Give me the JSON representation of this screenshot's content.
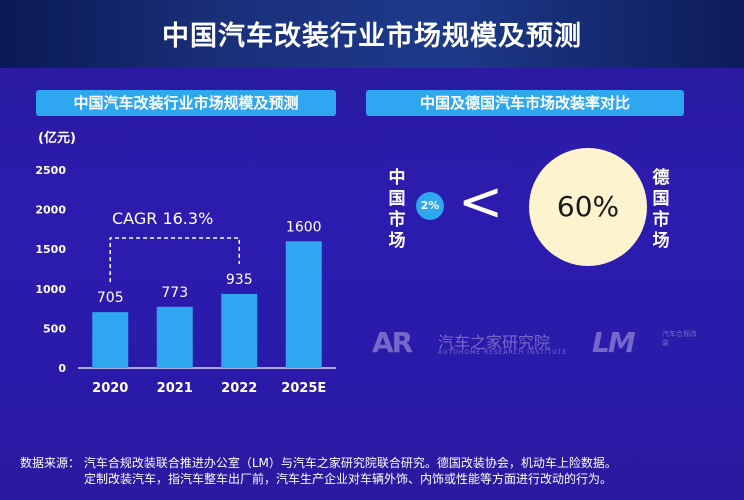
{
  "header": {
    "title": "中国汽车改装行业市场规模及预测"
  },
  "left_panel": {
    "title": "中国汽车改装行业市场规模及预测"
  },
  "right_panel": {
    "title": "中国及德国汽车市场改装率对比",
    "china_label": "中国市场",
    "germany_label": "德国市场",
    "china_value": "2%",
    "germany_value": "60%",
    "comparison_symbol": "<"
  },
  "chart_data": {
    "type": "bar",
    "title": "中国汽车改装行业市场规模及预测",
    "unit_label": "(亿元)",
    "categories": [
      "2020",
      "2021",
      "2022",
      "2025E"
    ],
    "values": [
      705,
      773,
      935,
      1600
    ],
    "value_labels": [
      "705",
      "773",
      "935",
      "1600"
    ],
    "ylim": [
      0,
      2500
    ],
    "yticks": [
      0,
      500,
      1000,
      1500,
      2000,
      2500
    ],
    "annotation": "CAGR 16.3%",
    "bar_color": "#2fa6f0",
    "grid": false
  },
  "watermark": {
    "logo1": "AR",
    "logo1_text": "汽车之家研究院",
    "logo1_sub": "AUTOHOME RESEARCH INSTITUTE",
    "logo2": "LM",
    "logo2_text": "汽车合规改装"
  },
  "source": {
    "line1": "数据来源：  汽车合规改装联合推进办公室（LM）与汽车之家研究院联合研究。德国改装协会，机动车上险数据。",
    "line2": "定制改装汽车，指汽车整车出厂前，汽车生产企业对车辆外饰、内饰或性能等方面进行改动的行为。"
  }
}
